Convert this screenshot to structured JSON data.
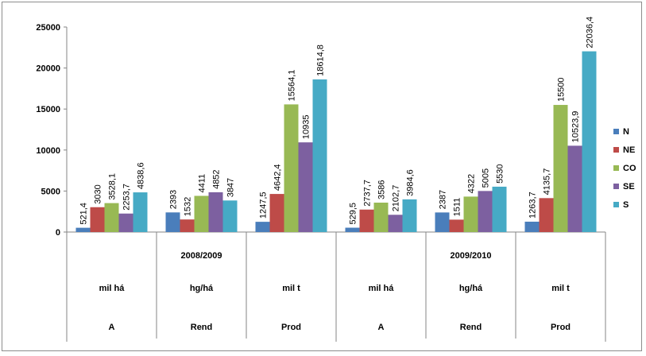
{
  "chart_data": {
    "type": "bar",
    "ylim": [
      0,
      25000
    ],
    "yticks": [
      0,
      5000,
      10000,
      15000,
      20000,
      25000
    ],
    "grid": false,
    "legend_position": "right",
    "groups": [
      {
        "x_label": "mil há",
        "variable": "A"
      },
      {
        "x_label": "hg/há",
        "variable": "Rend"
      },
      {
        "x_label": "mil t",
        "variable": "Prod"
      },
      {
        "x_label": "mil há",
        "variable": "A"
      },
      {
        "x_label": "hg/há",
        "variable": "Rend"
      },
      {
        "x_label": "mil t",
        "variable": "Prod"
      }
    ],
    "periods": [
      {
        "label": "2008/2009",
        "span": [
          0,
          2
        ]
      },
      {
        "label": "2009/2010",
        "span": [
          3,
          5
        ]
      }
    ],
    "series": [
      {
        "name": "N",
        "color": "#4a7ebb",
        "values": [
          521.4,
          2393,
          1247.5,
          529.5,
          2387,
          1263.7
        ],
        "labels": [
          "521,4",
          "2393",
          "1247,5",
          "529,5",
          "2387",
          "1263,7"
        ]
      },
      {
        "name": "NE",
        "color": "#be4b48",
        "values": [
          3030,
          1532,
          4642.4,
          2737.7,
          1511,
          4135.7
        ],
        "labels": [
          "3030",
          "1532",
          "4642,4",
          "2737,7",
          "1511",
          "4135,7"
        ]
      },
      {
        "name": "CO",
        "color": "#98b954",
        "values": [
          3528.1,
          4411,
          15564.1,
          3586,
          4322,
          15500
        ],
        "labels": [
          "3528,1",
          "4411",
          "15564,1",
          "3586",
          "4322",
          "15500"
        ]
      },
      {
        "name": "SE",
        "color": "#7d60a0",
        "values": [
          2253.7,
          4852,
          10935,
          2102.7,
          5005,
          10523.9
        ],
        "labels": [
          "2253,7",
          "4852",
          "10935",
          "2102,7",
          "5005",
          "10523,9"
        ]
      },
      {
        "name": "S",
        "color": "#46aac5",
        "values": [
          4838.6,
          3847,
          18614.8,
          3984.6,
          5530,
          22036.4
        ],
        "labels": [
          "4838,6",
          "3847",
          "18614,8",
          "3984,6",
          "5530",
          "22036,4"
        ]
      }
    ]
  }
}
